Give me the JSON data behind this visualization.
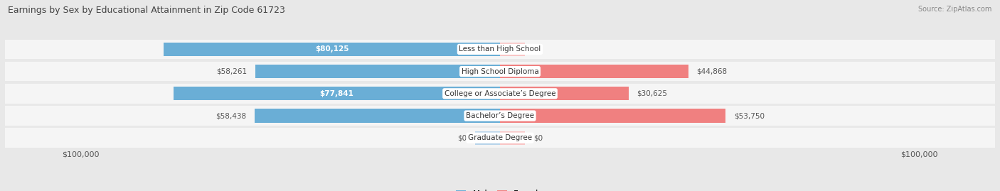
{
  "title": "Earnings by Sex by Educational Attainment in Zip Code 61723",
  "source": "Source: ZipAtlas.com",
  "categories": [
    "Less than High School",
    "High School Diploma",
    "College or Associate’s Degree",
    "Bachelor’s Degree",
    "Graduate Degree"
  ],
  "male_values": [
    80125,
    58261,
    77841,
    58438,
    0
  ],
  "female_values": [
    0,
    44868,
    30625,
    53750,
    0
  ],
  "male_color": "#6aaed6",
  "female_color": "#f08080",
  "male_faded_color": "#b8d4ea",
  "female_faded_color": "#f9c6c6",
  "max_value": 100000,
  "bar_height": 0.62,
  "bg_color": "#e8e8e8",
  "row_bg_color": "#f5f5f5",
  "label_color_dark": "#555555"
}
